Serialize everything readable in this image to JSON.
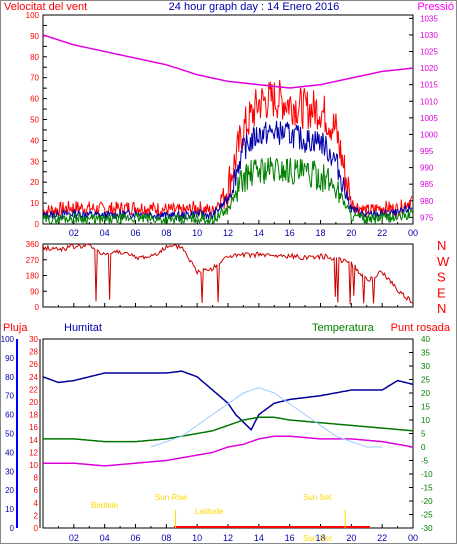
{
  "header": {
    "left_label": "Velocitat del vent",
    "title": "24 hour graph day : 14 Enero 2016",
    "right_label": "Pressió"
  },
  "middle_header": {
    "pluja": "Pluja",
    "humitat": "Humitat",
    "temperatura": "Temperatura",
    "punt_rosada": "Punt rosada"
  },
  "solar_labels": {
    "sunrise": "Sun Rise",
    "sunset": "Sun Set",
    "birdtide_left": "Birdtide",
    "latitude": "Latitude",
    "sun_bottom": "Sun Set"
  },
  "colors": {
    "wind_gust": "#ff0000",
    "wind_avg": "#0000aa",
    "wind_green": "#008000",
    "pressure": "#e000e0",
    "humidity": "#000099",
    "temperature": "#007700",
    "dewpoint": "#dd00dd",
    "rain": "#ff0000",
    "sun_curve": "#99ccff",
    "solar_label": "#ffd700",
    "blue_axis": "#0000ff",
    "frame": "#000000"
  },
  "chart_data": [
    {
      "type": "line",
      "title": "Wind speed / Pressure",
      "x_ticks": [
        "02",
        "04",
        "06",
        "08",
        "10",
        "12",
        "14",
        "16",
        "18",
        "20",
        "22",
        "00"
      ],
      "left_axis": {
        "label": "Velocitat del vent",
        "ticks": [
          0,
          5,
          10,
          15,
          20,
          25,
          30,
          35,
          40,
          45,
          50,
          55,
          60,
          65,
          70,
          75,
          80,
          85,
          90,
          95,
          100
        ],
        "ylim": [
          0,
          100
        ]
      },
      "right_axis": {
        "label": "Pressió",
        "ticks": [
          975,
          980,
          985,
          990,
          995,
          1000,
          1005,
          1010,
          1015,
          1020,
          1025,
          1030,
          1035
        ],
        "ylim": [
          973,
          1036
        ]
      },
      "series": [
        {
          "name": "gust",
          "x": [
            0,
            2,
            4,
            6,
            8,
            9,
            10,
            11,
            12,
            13,
            14,
            15,
            16,
            17,
            18,
            19,
            20,
            21,
            22,
            23,
            24
          ],
          "values": [
            6,
            8,
            7,
            8,
            7,
            6,
            8,
            6,
            18,
            45,
            58,
            60,
            58,
            55,
            55,
            45,
            10,
            6,
            8,
            7,
            12
          ]
        },
        {
          "name": "average",
          "x": [
            0,
            2,
            4,
            6,
            8,
            9,
            10,
            11,
            12,
            13,
            14,
            15,
            16,
            17,
            18,
            19,
            20,
            21,
            22,
            23,
            24
          ],
          "values": [
            4,
            5,
            4,
            5,
            4,
            4,
            5,
            4,
            12,
            36,
            43,
            44,
            43,
            40,
            40,
            30,
            7,
            4,
            5,
            5,
            8
          ]
        },
        {
          "name": "green",
          "x": [
            0,
            2,
            4,
            6,
            8,
            9,
            10,
            11,
            12,
            13,
            14,
            15,
            16,
            17,
            18,
            19,
            20,
            21,
            22,
            23,
            24
          ],
          "values": [
            2,
            3,
            2,
            3,
            2,
            2,
            3,
            2,
            7,
            22,
            26,
            26,
            26,
            24,
            23,
            18,
            4,
            2,
            3,
            3,
            5
          ]
        },
        {
          "name": "pressure",
          "x": [
            0,
            2,
            4,
            6,
            8,
            10,
            12,
            14,
            16,
            18,
            20,
            22,
            24
          ],
          "values": [
            1030,
            1027,
            1025,
            1023,
            1021,
            1018,
            1016,
            1015,
            1014,
            1015,
            1017,
            1019,
            1020
          ]
        }
      ]
    },
    {
      "type": "line",
      "title": "Wind direction",
      "left_axis": {
        "ticks": [
          0,
          90,
          180,
          270,
          360
        ],
        "ylim": [
          0,
          360
        ]
      },
      "right_axis": {
        "ticks": [
          "N",
          "W",
          "S",
          "E",
          "N"
        ]
      },
      "series": [
        {
          "name": "direction",
          "x": [
            0,
            1,
            2,
            3,
            4,
            5,
            6,
            7,
            8,
            9,
            10,
            11,
            12,
            13,
            14,
            15,
            16,
            17,
            18,
            19,
            20,
            21,
            22,
            23,
            24
          ],
          "values": [
            340,
            330,
            345,
            350,
            300,
            320,
            280,
            290,
            340,
            345,
            200,
            220,
            290,
            295,
            300,
            290,
            290,
            285,
            290,
            280,
            250,
            150,
            200,
            100,
            20
          ]
        }
      ]
    },
    {
      "type": "line",
      "title": "Humidity / Temperature / Dew point",
      "left_axes": [
        {
          "label": "Pluja",
          "ticks": [
            0,
            2,
            4,
            6,
            8,
            10,
            12,
            14,
            16,
            18,
            20,
            22,
            24,
            26,
            28,
            30
          ]
        },
        {
          "label": "Humitat",
          "ticks": [
            0,
            10,
            20,
            30,
            40,
            50,
            60,
            70,
            80,
            90,
            100
          ],
          "ylim": [
            0,
            100
          ]
        }
      ],
      "right_axis": {
        "label": "Temperatura",
        "ticks": [
          -30,
          -25,
          -20,
          -15,
          -10,
          -5,
          0,
          5,
          10,
          15,
          20,
          25,
          30,
          35,
          40
        ],
        "ylim": [
          -30,
          40
        ]
      },
      "series": [
        {
          "name": "Humitat",
          "x": [
            0,
            1,
            2,
            4,
            6,
            8,
            9,
            10,
            11,
            12,
            12.5,
            13,
            13.5,
            14,
            15,
            16,
            18,
            20,
            22,
            23,
            24
          ],
          "values": [
            80,
            77,
            78,
            82,
            82,
            82,
            83,
            80,
            73,
            66,
            60,
            56,
            52,
            60,
            66,
            68,
            70,
            73,
            73,
            78,
            76
          ]
        },
        {
          "name": "Temperatura",
          "x": [
            0,
            2,
            4,
            6,
            8,
            9,
            10,
            11,
            12,
            13,
            14,
            15,
            16,
            18,
            20,
            22,
            24
          ],
          "values": [
            3,
            3,
            2,
            2,
            3,
            4,
            5,
            6,
            8,
            10,
            11,
            11,
            10,
            9,
            8,
            7,
            6
          ]
        },
        {
          "name": "Punt rosada",
          "x": [
            0,
            2,
            4,
            6,
            8,
            9,
            10,
            11,
            12,
            13,
            14,
            15,
            16,
            18,
            20,
            22,
            24
          ],
          "values": [
            -6,
            -6,
            -7,
            -6,
            -5,
            -4,
            -3,
            -2,
            0,
            1,
            3,
            4,
            4,
            3,
            3,
            2,
            0
          ]
        },
        {
          "name": "solar",
          "x": [
            7,
            9,
            11,
            13,
            14,
            15,
            17,
            19,
            21,
            22
          ],
          "values": [
            0,
            4,
            12,
            20,
            22,
            20,
            12,
            4,
            0,
            0
          ]
        }
      ],
      "x_ticks": [
        "02",
        "04",
        "06",
        "08",
        "10",
        "12",
        "14",
        "16",
        "18",
        "20",
        "22",
        "00"
      ]
    }
  ]
}
